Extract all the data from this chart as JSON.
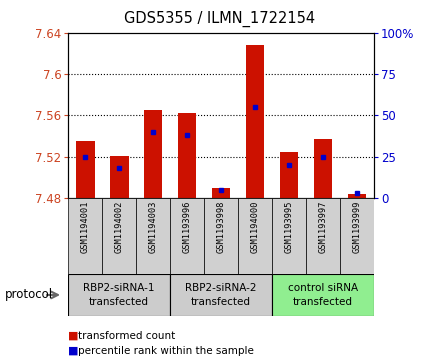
{
  "title": "GDS5355 / ILMN_1722154",
  "samples": [
    "GSM1194001",
    "GSM1194002",
    "GSM1194003",
    "GSM1193996",
    "GSM1193998",
    "GSM1194000",
    "GSM1193995",
    "GSM1193997",
    "GSM1193999"
  ],
  "red_values": [
    7.535,
    7.521,
    7.565,
    7.562,
    7.49,
    7.628,
    7.524,
    7.537,
    7.484
  ],
  "blue_percentiles": [
    25,
    18,
    40,
    38,
    5,
    55,
    20,
    25,
    3
  ],
  "ymin": 7.48,
  "ymax": 7.64,
  "yticks_left": [
    7.48,
    7.52,
    7.56,
    7.6,
    7.64
  ],
  "yticks_right": [
    0,
    25,
    50,
    75,
    100
  ],
  "right_ylabels": [
    "0",
    "25",
    "50",
    "75",
    "100%"
  ],
  "grid_lines": [
    7.52,
    7.56,
    7.6
  ],
  "groups": [
    {
      "label": "RBP2-siRNA-1\ntransfected",
      "start": 0,
      "end": 3,
      "color": "#cccccc"
    },
    {
      "label": "RBP2-siRNA-2\ntransfected",
      "start": 3,
      "end": 6,
      "color": "#cccccc"
    },
    {
      "label": "control siRNA\ntransfected",
      "start": 6,
      "end": 9,
      "color": "#90ee90"
    }
  ],
  "protocol_label": "protocol",
  "bar_color": "#cc1100",
  "percentile_color": "#0000cc",
  "bar_width": 0.55,
  "tick_color_left": "#cc4422",
  "tick_color_right": "#0000cc",
  "sample_box_color": "#d0d0d0",
  "legend_red_label": "transformed count",
  "legend_blue_label": "percentile rank within the sample"
}
